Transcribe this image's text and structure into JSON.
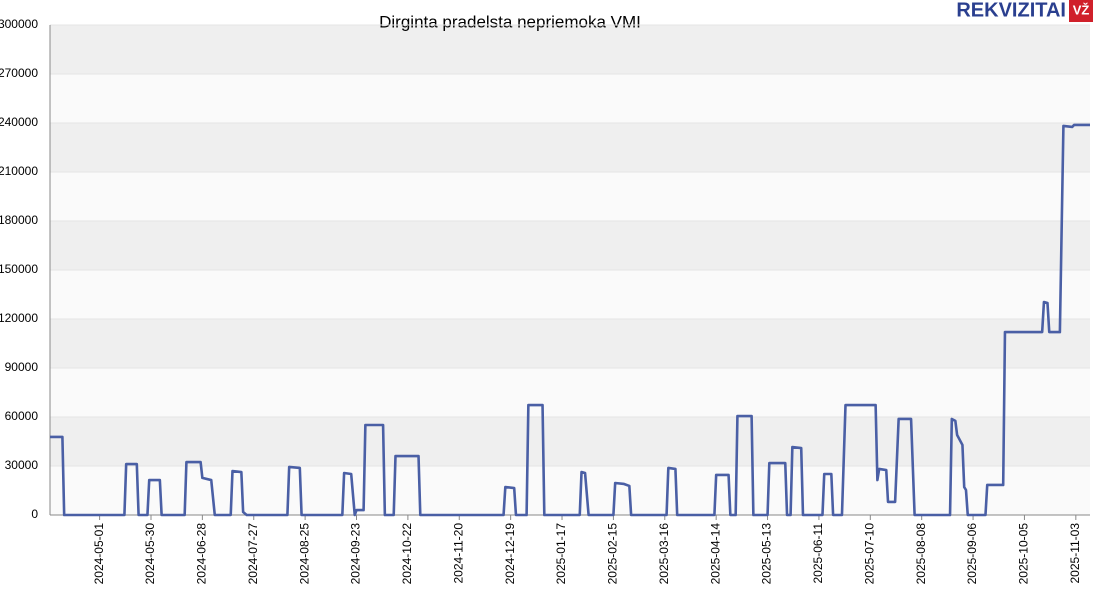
{
  "logo": {
    "text": "REKVIZITAI",
    "badge": "VŽ"
  },
  "chart_data": {
    "type": "line",
    "title": "Dirginta pradelsta nepriemoka VMI",
    "x": [
      "2024-04-03",
      "2024-04-10",
      "2024-04-11",
      "2024-05-15",
      "2024-05-16",
      "2024-05-22",
      "2024-05-23",
      "2024-05-28",
      "2024-05-29",
      "2024-06-04",
      "2024-06-05",
      "2024-06-18",
      "2024-06-19",
      "2024-06-27",
      "2024-06-28",
      "2024-07-03",
      "2024-07-05",
      "2024-07-14",
      "2024-07-15",
      "2024-07-20",
      "2024-07-21",
      "2024-07-23",
      "2024-08-15",
      "2024-08-16",
      "2024-08-22",
      "2024-08-23",
      "2024-09-15",
      "2024-09-16",
      "2024-09-20",
      "2024-09-22",
      "2024-09-23",
      "2024-09-27",
      "2024-09-28",
      "2024-10-08",
      "2024-10-09",
      "2024-10-14",
      "2024-10-15",
      "2024-10-28",
      "2024-10-29",
      "2024-12-15",
      "2024-12-16",
      "2024-12-21",
      "2024-12-22",
      "2024-12-28",
      "2024-12-29",
      "2025-01-06",
      "2025-01-07",
      "2025-01-27",
      "2025-01-28",
      "2025-01-30",
      "2025-02-01",
      "2025-02-15",
      "2025-02-16",
      "2025-02-21",
      "2025-02-24",
      "2025-02-25",
      "2025-03-17",
      "2025-03-18",
      "2025-03-22",
      "2025-03-23",
      "2025-04-13",
      "2025-04-14",
      "2025-04-21",
      "2025-04-22",
      "2025-04-25",
      "2025-04-26",
      "2025-05-04",
      "2025-05-05",
      "2025-05-13",
      "2025-05-14",
      "2025-05-23",
      "2025-05-24",
      "2025-05-26",
      "2025-05-27",
      "2025-06-01",
      "2025-06-02",
      "2025-06-13",
      "2025-06-14",
      "2025-06-18",
      "2025-06-19",
      "2025-06-24",
      "2025-06-26",
      "2025-07-13",
      "2025-07-14",
      "2025-07-15",
      "2025-07-19",
      "2025-07-20",
      "2025-07-24",
      "2025-07-26",
      "2025-08-02",
      "2025-08-04",
      "2025-08-24",
      "2025-08-25",
      "2025-08-27",
      "2025-08-28",
      "2025-08-31",
      "2025-09-01",
      "2025-09-02",
      "2025-09-03",
      "2025-09-13",
      "2025-09-14",
      "2025-09-23",
      "2025-09-24",
      "2025-10-15",
      "2025-10-16",
      "2025-10-18",
      "2025-10-19",
      "2025-10-25",
      "2025-10-27",
      "2025-11-01",
      "2025-11-02",
      "2025-11-11"
    ],
    "series": [
      {
        "color": "#4a5fa5",
        "values": [
          47800,
          47800,
          0,
          0,
          31200,
          31200,
          0,
          0,
          21400,
          21400,
          0,
          0,
          32400,
          32400,
          22700,
          21400,
          0,
          0,
          26900,
          26300,
          1800,
          0,
          0,
          29400,
          28800,
          0,
          0,
          25700,
          25100,
          0,
          3000,
          3000,
          55100,
          55100,
          0,
          0,
          36100,
          36100,
          0,
          0,
          17100,
          16500,
          0,
          0,
          67300,
          67300,
          0,
          0,
          26300,
          25700,
          0,
          0,
          19600,
          19000,
          17800,
          0,
          0,
          28800,
          28200,
          0,
          0,
          24500,
          24500,
          0,
          0,
          60600,
          60600,
          0,
          0,
          31800,
          31800,
          0,
          0,
          41600,
          41000,
          0,
          0,
          25100,
          25100,
          0,
          0,
          67300,
          67300,
          21400,
          28200,
          27500,
          8000,
          8000,
          58800,
          58800,
          0,
          0,
          58800,
          57600,
          49000,
          42900,
          17100,
          15300,
          0,
          0,
          18400,
          18400,
          112000,
          112000,
          130400,
          129800,
          112000,
          112000,
          238200,
          237600,
          238800,
          238800
        ]
      }
    ],
    "xlim": [
      "2024-04-03",
      "2025-11-11"
    ],
    "xticks": [
      "2024-05-01",
      "2024-05-30",
      "2024-06-28",
      "2024-07-27",
      "2024-08-25",
      "2024-09-23",
      "2024-10-22",
      "2024-11-20",
      "2024-12-19",
      "2025-01-17",
      "2025-02-15",
      "2025-03-16",
      "2025-04-14",
      "2025-05-13",
      "2025-06-11",
      "2025-07-10",
      "2025-08-08",
      "2025-09-06",
      "2025-10-05",
      "2025-11-03"
    ],
    "ylim": [
      0,
      300000
    ],
    "yticks": [
      0,
      30000,
      60000,
      90000,
      120000,
      150000,
      180000,
      210000,
      240000,
      270000,
      300000
    ],
    "grid": true
  }
}
